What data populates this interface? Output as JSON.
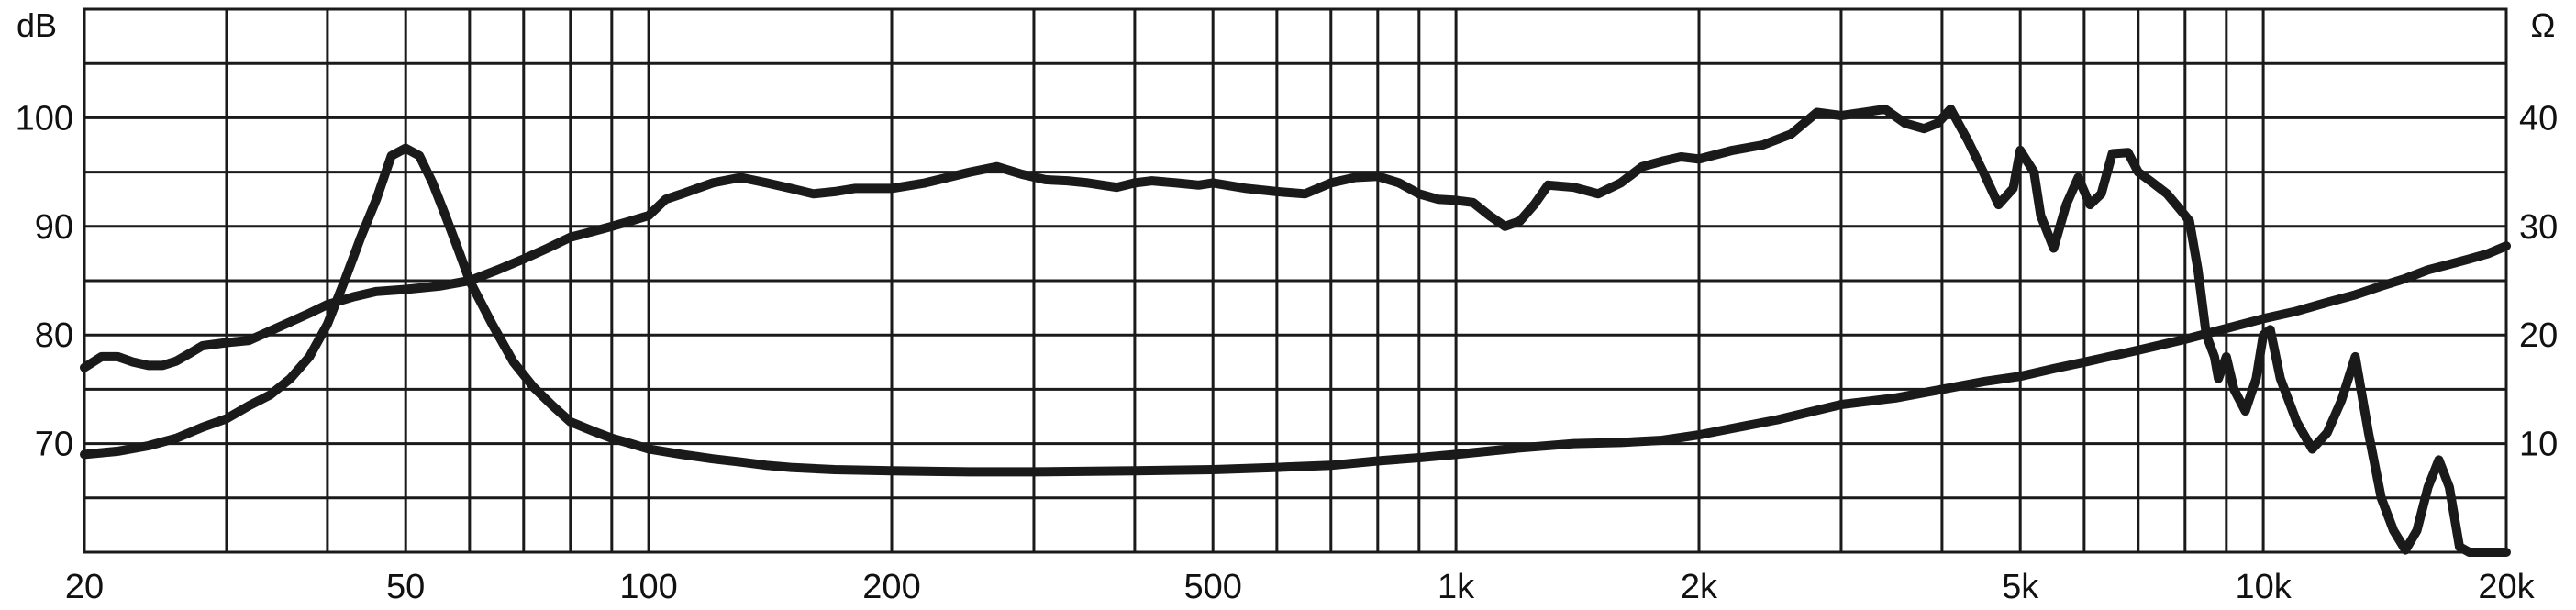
{
  "chart_data": {
    "type": "line",
    "left_axis_label": "dB",
    "right_axis_label": "Ω",
    "x_scale": "log",
    "xlim": [
      20,
      20000
    ],
    "x_ticks": [
      {
        "value": 20,
        "label": "20"
      },
      {
        "value": 50,
        "label": "50"
      },
      {
        "value": 100,
        "label": "100"
      },
      {
        "value": 200,
        "label": "200"
      },
      {
        "value": 500,
        "label": "500"
      },
      {
        "value": 1000,
        "label": "1k"
      },
      {
        "value": 2000,
        "label": "2k"
      },
      {
        "value": 5000,
        "label": "5k"
      },
      {
        "value": 10000,
        "label": "10k"
      },
      {
        "value": 20000,
        "label": "20k"
      }
    ],
    "ylim_left": [
      60,
      110
    ],
    "ylim_right": [
      0,
      50
    ],
    "y_ticks_left": [
      {
        "value": 70,
        "label": "70"
      },
      {
        "value": 80,
        "label": "80"
      },
      {
        "value": 90,
        "label": "90"
      },
      {
        "value": 100,
        "label": "100"
      }
    ],
    "y_ticks_right": [
      {
        "value": 10,
        "label": "10"
      },
      {
        "value": 20,
        "label": "20"
      },
      {
        "value": 30,
        "label": "30"
      },
      {
        "value": 40,
        "label": "40"
      }
    ],
    "horizontal_grid": [
      65,
      70,
      75,
      80,
      85,
      90,
      95,
      100,
      105
    ],
    "grid": true,
    "colors": {
      "line": "#1a1a1a",
      "grid": "#1a1a1a",
      "background": "#ffffff"
    },
    "series": [
      {
        "axis": "left",
        "unit": "dB",
        "x": [
          20,
          21,
          22,
          23,
          24,
          25,
          26,
          27,
          28,
          30,
          32,
          35,
          38,
          40,
          43,
          46,
          50,
          55,
          60,
          65,
          70,
          75,
          80,
          85,
          90,
          95,
          100,
          105,
          110,
          120,
          130,
          140,
          150,
          160,
          170,
          180,
          200,
          220,
          250,
          270,
          290,
          310,
          330,
          350,
          380,
          400,
          420,
          450,
          480,
          500,
          550,
          600,
          650,
          700,
          750,
          800,
          850,
          900,
          950,
          1000,
          1050,
          1100,
          1150,
          1200,
          1250,
          1300,
          1400,
          1500,
          1600,
          1700,
          1800,
          1900,
          2000,
          2200,
          2400,
          2600,
          2800,
          3000,
          3200,
          3400,
          3600,
          3800,
          3950,
          4100,
          4300,
          4500,
          4700,
          4900,
          5000,
          5200,
          5300,
          5500,
          5700,
          5900,
          6100,
          6300,
          6500,
          6800,
          7000,
          7300,
          7600,
          7900,
          8100,
          8300,
          8500,
          8700,
          8800,
          9000,
          9200,
          9500,
          9800,
          10000,
          10200,
          10500,
          11000,
          11500,
          12000,
          12500,
          13000,
          13500,
          14000,
          14500,
          15000,
          15500,
          16000,
          16500,
          17000,
          17500,
          18000,
          19000,
          20000
        ],
        "y": [
          77,
          78,
          78,
          77.5,
          77.2,
          77.2,
          77.6,
          78.3,
          79,
          79.3,
          79.5,
          80.8,
          82,
          82.8,
          83.5,
          84,
          84.2,
          84.5,
          85,
          86,
          87,
          88,
          89,
          89.5,
          90,
          90.5,
          91,
          92.5,
          93,
          94,
          94.5,
          94,
          93.5,
          93,
          93.2,
          93.5,
          93.5,
          94,
          95,
          95.5,
          94.8,
          94.3,
          94.2,
          94,
          93.6,
          94,
          94.2,
          94,
          93.8,
          94,
          93.5,
          93.2,
          93,
          94,
          94.5,
          94.6,
          94,
          93,
          92.5,
          92.4,
          92.2,
          91,
          90,
          90.5,
          92,
          93.8,
          93.6,
          93,
          94,
          95.5,
          96,
          96.4,
          96.2,
          97,
          97.5,
          98.5,
          100.5,
          100.2,
          100.5,
          100.8,
          99.5,
          99,
          99.5,
          100.8,
          98,
          95,
          92,
          93.5,
          97,
          95,
          91,
          88,
          92,
          94.5,
          92,
          93,
          96.7,
          96.8,
          95,
          94,
          93,
          91.5,
          90.5,
          86,
          80,
          78,
          76,
          78,
          75,
          73,
          76,
          80,
          80.5,
          76,
          72,
          69.5,
          71,
          74,
          78,
          71,
          65,
          62,
          60.2,
          62,
          66,
          68.5,
          66,
          60.5,
          60,
          60,
          60
        ]
      },
      {
        "axis": "right",
        "unit": "Ω",
        "x": [
          20,
          22,
          24,
          26,
          28,
          30,
          32,
          34,
          36,
          38,
          40,
          42,
          44,
          46,
          48,
          50,
          52,
          54,
          56,
          58,
          60,
          64,
          68,
          72,
          76,
          80,
          85,
          90,
          95,
          100,
          110,
          120,
          130,
          140,
          150,
          170,
          200,
          250,
          300,
          400,
          500,
          600,
          700,
          800,
          900,
          1000,
          1200,
          1400,
          1600,
          1800,
          2000,
          2200,
          2500,
          3000,
          3500,
          4000,
          4500,
          5000,
          5500,
          6000,
          7000,
          8000,
          9000,
          10000,
          11000,
          12000,
          13000,
          14000,
          15000,
          16000,
          17000,
          18000,
          19000,
          20000
        ],
        "y": [
          9,
          9.3,
          9.8,
          10.5,
          11.5,
          12.3,
          13.5,
          14.5,
          16,
          18,
          21,
          25,
          29,
          32.5,
          36.5,
          37.2,
          36.5,
          34,
          31,
          28,
          25,
          21,
          17.5,
          15.2,
          13.5,
          12,
          11.2,
          10.5,
          10,
          9.5,
          9,
          8.6,
          8.3,
          8,
          7.8,
          7.6,
          7.5,
          7.4,
          7.4,
          7.5,
          7.6,
          7.8,
          8,
          8.4,
          8.7,
          9,
          9.6,
          10,
          10.1,
          10.3,
          10.8,
          11.4,
          12.2,
          13.6,
          14.2,
          15,
          15.7,
          16.2,
          16.9,
          17.5,
          18.6,
          19.6,
          20.6,
          21.5,
          22.2,
          23,
          23.7,
          24.5,
          25.2,
          26,
          26.5,
          27,
          27.5,
          28.2
        ]
      }
    ]
  }
}
